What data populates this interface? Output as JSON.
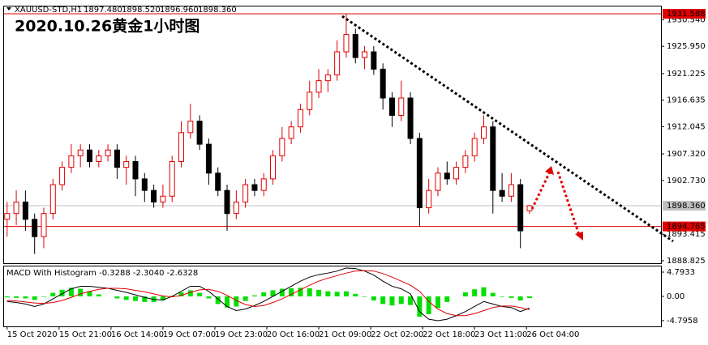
{
  "chart_data": [
    {
      "type": "candlestick",
      "title": "2020.10.26黄金1小时图",
      "header": [
        "XAUUSD-STD,H1",
        "1897.480",
        "1898.520",
        "1896.960",
        "1898.360"
      ],
      "x": [
        0,
        3,
        6,
        9,
        12,
        15,
        18,
        21,
        24,
        27,
        30,
        33,
        36,
        39,
        42,
        45,
        48,
        51,
        54,
        57,
        60,
        63,
        66,
        69,
        72,
        75,
        78,
        81,
        84,
        87,
        90,
        93,
        96,
        99,
        102,
        105,
        108,
        111,
        114,
        117,
        120,
        123,
        126,
        129,
        132,
        135,
        138,
        141,
        144,
        147,
        150,
        153,
        156,
        159,
        162,
        165,
        168,
        171
      ],
      "open": [
        1896,
        1897,
        1899,
        1896,
        1893,
        1897,
        1902,
        1905,
        1907,
        1908,
        1906,
        1907,
        1908,
        1905,
        1906,
        1903,
        1901,
        1899,
        1900,
        1906,
        1911,
        1913,
        1909,
        1904,
        1901,
        1897,
        1899,
        1902,
        1901,
        1903,
        1907,
        1910,
        1912,
        1915,
        1918,
        1920,
        1921,
        1925,
        1928,
        1924,
        1925,
        1922,
        1917,
        1914,
        1917,
        1910,
        1898,
        1901,
        1904,
        1903,
        1905,
        1907,
        1910,
        1912,
        1901,
        1900,
        1902,
        1897.48
      ],
      "high": [
        1899,
        1901,
        1901,
        1897,
        1898,
        1903,
        1906,
        1909,
        1909,
        1909,
        1908,
        1909,
        1909,
        1907,
        1907,
        1904,
        1902,
        1902,
        1907,
        1913,
        1916,
        1914,
        1910,
        1905,
        1902,
        1901,
        1903,
        1903,
        1904,
        1908,
        1912,
        1913,
        1916,
        1920,
        1922,
        1922,
        1927,
        1931.5,
        1929,
        1926,
        1926,
        1923,
        1918,
        1920,
        1918,
        1911,
        1903,
        1905,
        1906,
        1906,
        1908,
        1911,
        1914,
        1913,
        1904,
        1904,
        1903,
        1898.52
      ],
      "low": [
        1893,
        1895,
        1894,
        1890,
        1891,
        1896,
        1901,
        1904,
        1905,
        1905,
        1905,
        1906,
        1903,
        1902,
        1900,
        1899,
        1898,
        1898,
        1899,
        1905,
        1910,
        1908,
        1902,
        1900,
        1894,
        1896,
        1898,
        1900,
        1900,
        1902,
        1906,
        1909,
        1911,
        1914,
        1917,
        1918,
        1920,
        1924,
        1923,
        1922,
        1921,
        1915,
        1912,
        1913,
        1909,
        1894.8,
        1897,
        1900,
        1902,
        1902,
        1904,
        1906,
        1909,
        1897,
        1899,
        1899,
        1891,
        1896.96
      ],
      "close": [
        1897,
        1899,
        1896,
        1893,
        1897,
        1902,
        1905,
        1907,
        1908,
        1906,
        1907,
        1908,
        1905,
        1906,
        1903,
        1901,
        1899,
        1900,
        1906,
        1911,
        1913,
        1909,
        1904,
        1901,
        1897,
        1899,
        1902,
        1901,
        1903,
        1907,
        1910,
        1912,
        1915,
        1918,
        1920,
        1921,
        1925,
        1928,
        1924,
        1925,
        1922,
        1917,
        1914,
        1917,
        1910,
        1898,
        1901,
        1904,
        1903,
        1905,
        1907,
        1910,
        1912,
        1901,
        1900,
        1902,
        1894,
        1898.36
      ],
      "up_color": "#e00000",
      "down_color": "#000000",
      "xlim": [
        -1,
        214
      ],
      "xticks": [
        {
          "value": 0,
          "label": "15 Oct 2020"
        },
        {
          "value": 17,
          "label": "15 Oct 21:00"
        },
        {
          "value": 34,
          "label": "16 Oct 14:00"
        },
        {
          "value": 51,
          "label": "19 Oct 07:00"
        },
        {
          "value": 68,
          "label": "19 Oct 23:00"
        },
        {
          "value": 85,
          "label": "20 Oct 16:00"
        },
        {
          "value": 102,
          "label": "21 Oct 09:00"
        },
        {
          "value": 119,
          "label": "22 Oct 02:00"
        },
        {
          "value": 136,
          "label": "22 Oct 18:00"
        },
        {
          "value": 153,
          "label": "23 Oct 11:00"
        },
        {
          "value": 170,
          "label": "26 Oct 04:00"
        }
      ],
      "ylim": [
        1888.4,
        1932.85
      ],
      "yticks": [
        {
          "value": 1930.54,
          "label": "1930.540"
        },
        {
          "value": 1925.95,
          "label": "1925.950"
        },
        1921.225,
        1916.635,
        1912.045,
        {
          "value": 1907.32,
          "label": "1907.320"
        },
        {
          "value": 1902.73,
          "label": "1902.730"
        },
        1893.415,
        1888.825
      ],
      "hlines": [
        {
          "value": 1931.588,
          "color": "#e00000",
          "text_color": "#ffffff"
        },
        {
          "value": 1894.765,
          "color": "#e00000",
          "text_color": "#ffffff"
        },
        {
          "value": 1898.36,
          "label": "1898.360",
          "color": "#c0c0c0",
          "text_color": "#000000"
        }
      ]
    },
    {
      "type": "macd",
      "label": "MACD With Histogram -0.3288 -2.3040 -2.6328",
      "histogram": [
        -0.2,
        -0.3,
        -0.4,
        -0.7,
        -0.1,
        0.7,
        1.3,
        1.7,
        1.5,
        1,
        0.4,
        0,
        -0.4,
        -0.7,
        -0.9,
        -1.1,
        -1.1,
        -0.8,
        0.1,
        0.8,
        1.2,
        0.7,
        -0.4,
        -1.5,
        -2.2,
        -2,
        -0.9,
        0.2,
        0.8,
        1.2,
        1.5,
        1.6,
        1.7,
        1.6,
        1.3,
        1,
        0.9,
        1,
        0.5,
        -0.1,
        -0.8,
        -1.5,
        -1.8,
        -1.5,
        -1.7,
        -4,
        -3.5,
        -2.3,
        -1.1,
        0,
        0.8,
        1.4,
        1.8,
        0.7,
        -0.1,
        -0.3,
        -0.8,
        -0.3288
      ],
      "macd": [
        -1,
        -1.2,
        -1.5,
        -2,
        -1.5,
        -0.5,
        0.5,
        1.5,
        2,
        2,
        1.8,
        1.6,
        1.2,
        0.8,
        0.3,
        -0.2,
        -0.6,
        -0.7,
        0,
        1,
        2,
        2,
        1,
        -0.5,
        -2,
        -2.8,
        -2.5,
        -1.8,
        -1,
        0,
        1,
        2,
        3,
        3.8,
        4.3,
        4.6,
        5,
        5.6,
        5.5,
        5,
        4.2,
        3,
        2,
        1.5,
        0.5,
        -3,
        -4.5,
        -4.8,
        -4.5,
        -3.8,
        -3,
        -2,
        -1,
        -1.5,
        -2,
        -2.2,
        -3,
        -2.304
      ],
      "signal": [
        -0.8,
        -0.9,
        -1.1,
        -1.3,
        -1.4,
        -1.2,
        -0.8,
        -0.2,
        0.5,
        1,
        1.4,
        1.6,
        1.6,
        1.5,
        1.2,
        0.9,
        0.5,
        0.1,
        -0.1,
        0.2,
        0.8,
        1.3,
        1.4,
        1,
        0.2,
        -0.8,
        -1.6,
        -2,
        -1.8,
        -1.2,
        -0.5,
        0.4,
        1.3,
        2.2,
        3,
        3.6,
        4.1,
        4.6,
        5,
        5.1,
        5,
        4.5,
        3.8,
        3,
        2.2,
        1,
        -1,
        -2.5,
        -3.4,
        -3.8,
        -3.8,
        -3.4,
        -2.8,
        -2.2,
        -1.9,
        -1.9,
        -2.2,
        -2.6328
      ],
      "histogram_color": "#00e000",
      "macd_color": "#000000",
      "signal_color": "#e00000",
      "ylim": [
        -5.92,
        5.91
      ],
      "yticks": [
        4.7933,
        {
          "value": 0,
          "label": "0.00"
        },
        -4.7958
      ]
    }
  ]
}
